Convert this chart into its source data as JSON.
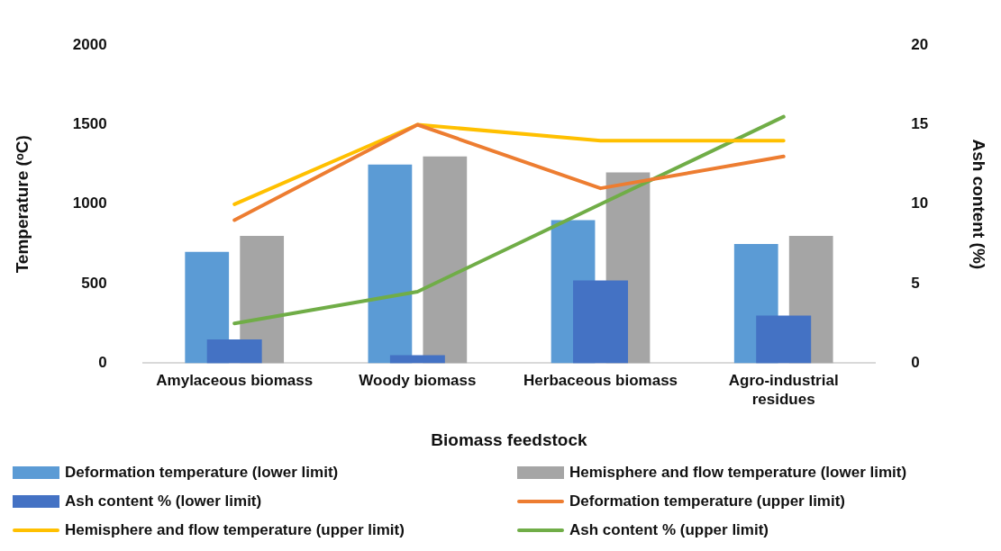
{
  "chart_data": {
    "type": "bar",
    "xlabel": "Biomass feedstock",
    "ylabel": "Temperature (ᵒC)",
    "y2label": "Ash content (%)",
    "categories": [
      "Amylaceous biomass",
      "Woody biomass",
      "Herbaceous biomass",
      "Agro-industrial residues"
    ],
    "series": [
      {
        "name": "Deformation temperature (lower limit)",
        "color": "#5b9bd5",
        "values": [
          700,
          1250,
          900,
          750
        ]
      },
      {
        "name": "Hemisphere and flow temperature (lower limit)",
        "color": "#a5a5a5",
        "values": [
          800,
          1300,
          1200,
          800
        ]
      },
      {
        "name": "Ash content % (lower limit)",
        "axis": "y2",
        "color": "#4472c4",
        "values": [
          1.5,
          0.5,
          5.2,
          3
        ]
      },
      {
        "name": "Deformation temperature (upper limit)",
        "type": "line",
        "color": "#ed7d31",
        "values": [
          900,
          1500,
          1100,
          1300
        ]
      },
      {
        "name": "Hemisphere and flow temperature (upper limit)",
        "type": "line",
        "color": "#ffc000",
        "values": [
          1000,
          1500,
          1400,
          1400
        ]
      },
      {
        "name": "Ash content % (upper limit)",
        "type": "line",
        "axis": "y2",
        "color": "#70ad47",
        "values": [
          2.5,
          4.5,
          10,
          15.5
        ]
      }
    ],
    "ylim": [
      0,
      2000
    ],
    "yticks": [
      0,
      500,
      1000,
      1500,
      2000
    ],
    "y2lim": [
      0,
      20
    ],
    "y2ticks": [
      0,
      5,
      10,
      15,
      20
    ],
    "grid": false,
    "legend": "bottom",
    "marker": "none"
  }
}
